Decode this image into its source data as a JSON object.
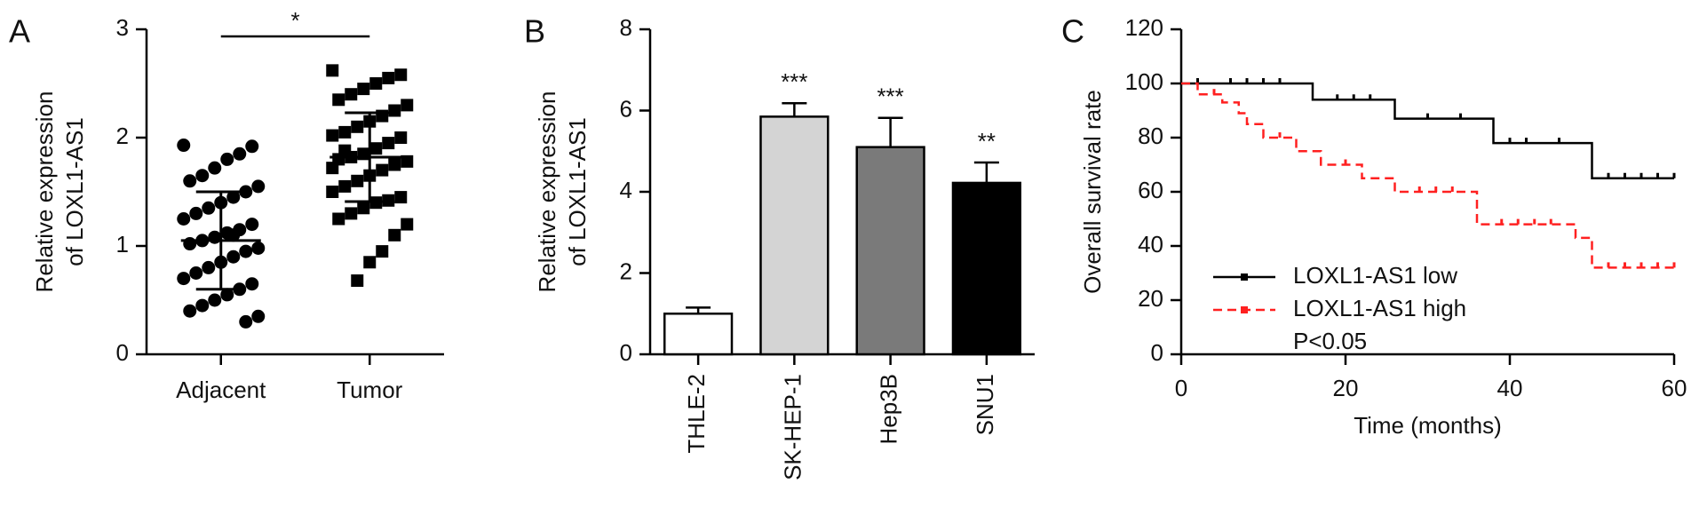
{
  "chart_data": [
    {
      "type": "strip",
      "panel": "A",
      "ylabel": [
        "Relative expression",
        "of LOXL1-AS1"
      ],
      "categories": [
        "Adjacent",
        "Tumor"
      ],
      "markers": [
        "circle",
        "square"
      ],
      "values": [
        [
          1.93,
          1.92,
          1.85,
          1.8,
          1.72,
          1.65,
          1.6,
          1.55,
          1.5,
          1.45,
          1.4,
          1.35,
          1.3,
          1.25,
          1.2,
          1.15,
          1.12,
          1.08,
          1.05,
          1.02,
          0.98,
          0.95,
          0.9,
          0.85,
          0.8,
          0.75,
          0.7,
          0.65,
          0.6,
          0.55,
          0.5,
          0.45,
          0.4,
          0.35,
          0.3,
          1.1
        ],
        [
          2.62,
          2.58,
          2.55,
          2.5,
          2.45,
          2.4,
          2.35,
          2.3,
          2.25,
          2.2,
          2.15,
          2.1,
          2.05,
          2.02,
          2.0,
          1.95,
          1.9,
          1.85,
          1.82,
          1.8,
          1.78,
          1.75,
          1.7,
          1.65,
          1.6,
          1.55,
          1.5,
          1.45,
          1.42,
          1.4,
          1.35,
          1.3,
          1.25,
          1.2,
          1.1,
          0.95,
          0.85,
          0.68,
          1.88,
          1.72
        ]
      ],
      "means": [
        1.05,
        1.82
      ],
      "sd": [
        0.45,
        0.41
      ],
      "significance": "*",
      "ylim": [
        0,
        3
      ],
      "yticks": [
        0,
        1,
        2,
        3
      ]
    },
    {
      "type": "bar",
      "panel": "B",
      "ylabel": [
        "Relative expression",
        "of LOXL1-AS1"
      ],
      "categories": [
        "THLE-2",
        "SK-HEP-1",
        "Hep3B",
        "SNU1"
      ],
      "values": [
        1.0,
        5.85,
        5.1,
        4.22
      ],
      "errors": [
        0.15,
        0.33,
        0.72,
        0.5
      ],
      "colors": [
        "#ffffff",
        "#d4d4d4",
        "#7a7a7a",
        "#000000"
      ],
      "significance": [
        null,
        "***",
        "***",
        "**"
      ],
      "ylim": [
        0,
        8
      ],
      "yticks": [
        0,
        2,
        4,
        6,
        8
      ]
    },
    {
      "type": "survival",
      "panel": "C",
      "xlabel": "Time (months)",
      "ylabel": "Overall survival rate",
      "xlim": [
        0,
        60
      ],
      "xticks": [
        0,
        20,
        40,
        60
      ],
      "ylim": [
        0,
        120
      ],
      "yticks": [
        0,
        20,
        40,
        60,
        80,
        100,
        120
      ],
      "legend": "lower left",
      "note": "P<0.05",
      "series": [
        {
          "name": "LOXL1-AS1 low",
          "color": "#000000",
          "dash": false,
          "x": [
            0,
            16,
            26,
            38,
            50,
            60
          ],
          "values": [
            100,
            94,
            87,
            78,
            65,
            65
          ],
          "censored_x": [
            2,
            6,
            8,
            10,
            12,
            19,
            21,
            23,
            30,
            34,
            40,
            42,
            46,
            52,
            54,
            56,
            58,
            60
          ],
          "censored_y": [
            100,
            100,
            100,
            100,
            100,
            94,
            94,
            94,
            87,
            87,
            78,
            78,
            78,
            65,
            65,
            65,
            65,
            65
          ]
        },
        {
          "name": "LOXL1-AS1 high",
          "color": "#ff2020",
          "dash": true,
          "x": [
            0,
            2,
            5,
            7,
            8,
            10,
            14,
            17,
            22,
            26,
            36,
            48,
            50,
            60
          ],
          "values": [
            100,
            96,
            93,
            89,
            85,
            80,
            75,
            70,
            65,
            60,
            48,
            43,
            32,
            32
          ],
          "censored_x": [
            4,
            12,
            20,
            29,
            31,
            33,
            39,
            41,
            43,
            45,
            52,
            54,
            56,
            58,
            60
          ],
          "censored_y": [
            96,
            80,
            70,
            60,
            60,
            60,
            48,
            48,
            48,
            48,
            32,
            32,
            32,
            32,
            32
          ]
        }
      ]
    }
  ]
}
